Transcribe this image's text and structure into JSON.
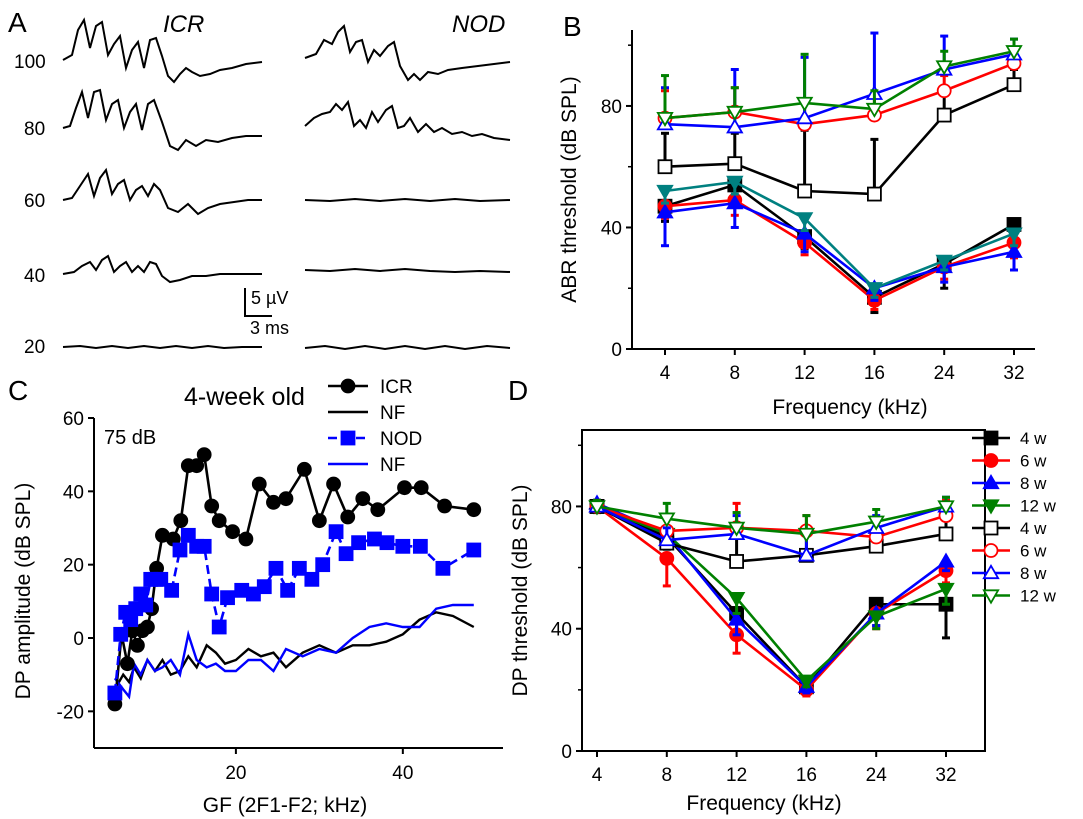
{
  "panels": {
    "A": {
      "letter": "A",
      "groups": [
        "ICR",
        "NOD"
      ],
      "levels": [
        "100",
        "80",
        "60",
        "40",
        "20"
      ],
      "scale_amp": "5 µV",
      "scale_time": "3 ms"
    },
    "B": {
      "letter": "B"
    },
    "C": {
      "letter": "C",
      "title": "4-week old",
      "level_note": "75 dB"
    },
    "D": {
      "letter": "D"
    }
  },
  "legend_cd": [
    "4 w",
    "6 w",
    "8 w",
    "12 w",
    "4 w",
    "6 w",
    "8 w",
    "12 w"
  ],
  "chart_data": [
    {
      "panel": "B",
      "type": "line",
      "xlabel": "Frequency (kHz)",
      "ylabel": "ABR threshold (dB SPL)",
      "categories": [
        "4",
        "8",
        "12",
        "16",
        "24",
        "32"
      ],
      "ylim": [
        0,
        105
      ],
      "yticks": [
        0,
        40,
        80
      ],
      "series": [
        {
          "name": "4 w",
          "group": "ICR",
          "color": "#000000",
          "marker": "square",
          "filled": true,
          "values": [
            47,
            54,
            37,
            17,
            28,
            41
          ],
          "err": [
            5,
            4,
            4,
            5,
            8,
            6
          ]
        },
        {
          "name": "6 w",
          "group": "ICR",
          "color": "#ff0000",
          "marker": "circle",
          "filled": true,
          "values": [
            47,
            49,
            35,
            16,
            27,
            35
          ],
          "err": [
            4,
            5,
            4,
            3,
            4,
            5
          ]
        },
        {
          "name": "8 w",
          "group": "ICR",
          "color": "#0000ff",
          "marker": "triangle-up",
          "filled": true,
          "values": [
            45,
            48,
            38,
            20,
            27,
            32
          ],
          "err": [
            11,
            8,
            6,
            4,
            5,
            6
          ]
        },
        {
          "name": "12 w",
          "group": "ICR",
          "color": "#008080",
          "marker": "triangle-down",
          "filled": true,
          "values": [
            52,
            55,
            43,
            20,
            29,
            38
          ],
          "err": [
            4,
            4,
            4,
            3,
            3,
            4
          ]
        },
        {
          "name": "4 w",
          "group": "NOD",
          "color": "#000000",
          "marker": "square",
          "filled": false,
          "values": [
            60,
            61,
            52,
            51,
            77,
            87
          ],
          "err": [
            11,
            10,
            20,
            18,
            7,
            5
          ]
        },
        {
          "name": "6 w",
          "group": "NOD",
          "color": "#ff0000",
          "marker": "circle",
          "filled": false,
          "values": [
            76,
            78,
            74,
            77,
            85,
            94
          ],
          "err": [
            9,
            8,
            8,
            6,
            5,
            4
          ]
        },
        {
          "name": "8 w",
          "group": "NOD",
          "color": "#0000ff",
          "marker": "triangle-up",
          "filled": false,
          "values": [
            74,
            73,
            76,
            84,
            92,
            97
          ],
          "err": [
            12,
            19,
            20,
            20,
            11,
            5
          ]
        },
        {
          "name": "12 w",
          "group": "NOD",
          "color": "#008000",
          "marker": "triangle-down",
          "filled": false,
          "values": [
            76,
            78,
            81,
            79,
            93,
            98
          ],
          "err": [
            14,
            8,
            16,
            6,
            5,
            4
          ]
        }
      ]
    },
    {
      "panel": "C",
      "type": "line",
      "title": "4-week old",
      "xlabel": "GF (2F1-F2; kHz)",
      "ylabel": "DP amplitude (dB SPL)",
      "xlim": [
        3,
        52
      ],
      "ylim": [
        -30,
        60
      ],
      "xticks": [
        20,
        40
      ],
      "yticks": [
        -20,
        0,
        20,
        40,
        60
      ],
      "series": [
        {
          "name": "ICR",
          "color": "#000000",
          "marker": "circle",
          "x": [
            5.5,
            6.3,
            7.0,
            7.6,
            8.2,
            8.8,
            9.4,
            9.9,
            10.5,
            11.2,
            12.5,
            13.4,
            14.3,
            15.3,
            16.2,
            17.1,
            18.0,
            19.6,
            21.2,
            22.8,
            24.5,
            26.0,
            28.2,
            30.0,
            31.7,
            33.4,
            35.2,
            37.0,
            40.2,
            42.2,
            45.0,
            48.5
          ],
          "y": [
            -18,
            1,
            -7,
            2,
            -2,
            2,
            3,
            8,
            19,
            28,
            27,
            32,
            47,
            47,
            50,
            36,
            32,
            29,
            27,
            42,
            37,
            38,
            46,
            32,
            42,
            33,
            38,
            35,
            41,
            41,
            36,
            35
          ]
        },
        {
          "name": "NF",
          "color": "#000000",
          "marker": "none",
          "x": [
            5.5,
            6.5,
            7.2,
            7.8,
            8.6,
            9.4,
            10.3,
            11.2,
            12.2,
            13.3,
            14.3,
            15.3,
            16.5,
            17.6,
            18.7,
            20,
            21.5,
            23,
            24.5,
            26,
            28,
            30,
            32,
            34,
            36,
            38,
            40,
            42,
            44,
            46,
            48.5
          ],
          "y": [
            -14,
            -10,
            -12,
            -8,
            -11,
            -6,
            -9,
            -6,
            -10,
            -9,
            -5,
            -8,
            -2,
            -4,
            -7,
            -6,
            -3,
            -5,
            -4,
            -8,
            -4,
            -2,
            -4,
            -2,
            -2,
            -1,
            1,
            5,
            7,
            6,
            3
          ]
        },
        {
          "name": "NOD",
          "color": "#0000ff",
          "marker": "square",
          "x": [
            5.5,
            6.2,
            6.8,
            7.4,
            8.0,
            8.6,
            9.2,
            9.8,
            10.4,
            11.0,
            12.3,
            13.3,
            14.3,
            15.3,
            16.2,
            17.1,
            18.0,
            19.0,
            20.7,
            22.1,
            23.4,
            24.8,
            26.2,
            27.6,
            29.1,
            30.4,
            32.0,
            33.2,
            34.7,
            36.6,
            38.1,
            40.0,
            42.1,
            44.8,
            48.5
          ],
          "y": [
            -15,
            1,
            7,
            5,
            8,
            12,
            9,
            16,
            16,
            16,
            13,
            24,
            28,
            25,
            25,
            12,
            3,
            11,
            13,
            12,
            14,
            19,
            13,
            19,
            16,
            20,
            29,
            23,
            26,
            27,
            26,
            25,
            25,
            19,
            24
          ]
        },
        {
          "name": "NF",
          "color": "#0000ff",
          "marker": "none",
          "x": [
            5.5,
            6.5,
            7.2,
            7.8,
            8.6,
            9.4,
            10.3,
            11.2,
            12.2,
            13.3,
            14.3,
            15.3,
            16.5,
            17.6,
            18.7,
            20,
            21.5,
            23,
            24.5,
            26,
            28,
            30,
            32,
            34,
            36,
            38,
            40,
            42,
            44,
            46,
            48.5
          ],
          "y": [
            -11,
            -14,
            -16,
            -7,
            -10,
            -6,
            -9,
            -8,
            -6,
            -10,
            1,
            -6,
            -8,
            -7,
            -9,
            -9,
            -6,
            -6,
            -9,
            -3,
            -5,
            -3,
            -4,
            0,
            3,
            4,
            3,
            3,
            8,
            9,
            9
          ]
        }
      ]
    },
    {
      "panel": "D",
      "type": "line",
      "xlabel": "Frequency (kHz)",
      "ylabel": "DP threshold (dB SPL)",
      "categories": [
        "4",
        "8",
        "12",
        "16",
        "24",
        "32"
      ],
      "ylim": [
        0,
        105
      ],
      "yticks": [
        0,
        40,
        80
      ],
      "series": [
        {
          "name": "4 w",
          "group": "ICR",
          "color": "#000000",
          "marker": "square",
          "filled": true,
          "values": [
            80,
            70,
            45,
            21,
            48,
            48
          ],
          "err": [
            2,
            4,
            8,
            2,
            7,
            11
          ]
        },
        {
          "name": "6 w",
          "group": "ICR",
          "color": "#ff0000",
          "marker": "circle",
          "filled": true,
          "values": [
            80,
            63,
            38,
            20,
            45,
            59
          ],
          "err": [
            2,
            9,
            6,
            2,
            5,
            4
          ]
        },
        {
          "name": "8 w",
          "group": "ICR",
          "color": "#0000ff",
          "marker": "triangle-up",
          "filled": true,
          "values": [
            81,
            71,
            43,
            21,
            45,
            62
          ],
          "err": [
            2,
            4,
            5,
            2,
            4,
            3
          ]
        },
        {
          "name": "12 w",
          "group": "ICR",
          "color": "#008000",
          "marker": "triangle-down",
          "filled": true,
          "values": [
            80,
            71,
            50,
            23,
            44,
            53
          ],
          "err": [
            2,
            4,
            5,
            2,
            4,
            5
          ]
        },
        {
          "name": "4 w",
          "group": "NOD",
          "color": "#000000",
          "marker": "square",
          "filled": false,
          "values": [
            80,
            68,
            62,
            64,
            67,
            71
          ],
          "err": [
            2,
            4,
            8,
            8,
            4,
            5
          ]
        },
        {
          "name": "6 w",
          "group": "NOD",
          "color": "#ff0000",
          "marker": "circle",
          "filled": false,
          "values": [
            80,
            72,
            73,
            72,
            70,
            77
          ],
          "err": [
            2,
            4,
            8,
            5,
            5,
            5
          ]
        },
        {
          "name": "8 w",
          "group": "NOD",
          "color": "#0000ff",
          "marker": "triangle-up",
          "filled": false,
          "values": [
            80,
            69,
            71,
            64,
            73,
            80
          ],
          "err": [
            2,
            4,
            6,
            8,
            4,
            3
          ]
        },
        {
          "name": "12 w",
          "group": "NOD",
          "color": "#008000",
          "marker": "triangle-down",
          "filled": false,
          "values": [
            80,
            76,
            73,
            71,
            75,
            80
          ],
          "err": [
            2,
            5,
            5,
            6,
            4,
            3
          ]
        }
      ]
    }
  ]
}
